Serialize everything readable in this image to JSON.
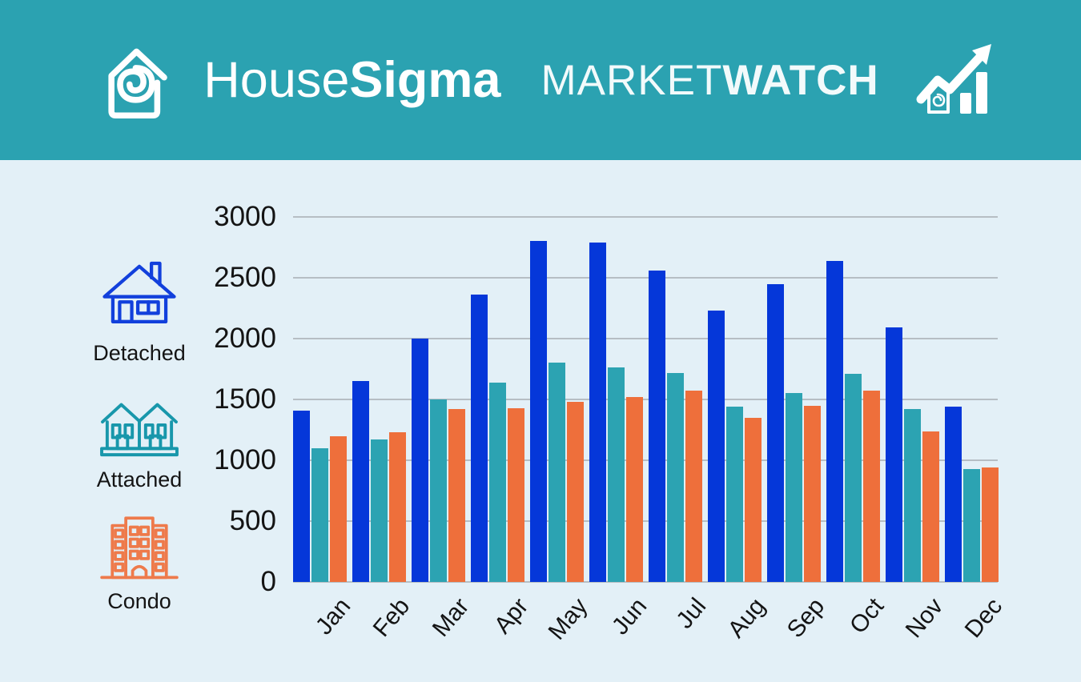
{
  "header": {
    "bg_color": "#2ba2b1",
    "brand": {
      "name_regular": "House",
      "name_bold": "Sigma"
    },
    "title": {
      "regular": "MARKET",
      "bold": "WATCH"
    },
    "logo_icon": "housesigma-house-spiral-icon",
    "title_icon": "house-trend-arrow-chart-icon"
  },
  "legend": {
    "items": [
      {
        "label": "Detached",
        "icon": "detached-house-icon",
        "color": "#1240dc"
      },
      {
        "label": "Attached",
        "icon": "attached-houses-icon",
        "color": "#1897ab"
      },
      {
        "label": "Condo",
        "icon": "condo-building-icon",
        "color": "#ee7a4b"
      }
    ]
  },
  "chart_data": {
    "type": "bar",
    "categories": [
      "Jan",
      "Feb",
      "Mar",
      "Apr",
      "May",
      "Jun",
      "Jul",
      "Aug",
      "Sep",
      "Oct",
      "Nov",
      "Dec"
    ],
    "series": [
      {
        "name": "Detached",
        "color": "#0537d9",
        "values": [
          1410,
          1650,
          2000,
          2360,
          2800,
          2790,
          2560,
          2230,
          2450,
          2640,
          2090,
          1440
        ]
      },
      {
        "name": "Attached",
        "color": "#2ca3b2",
        "values": [
          1100,
          1170,
          1500,
          1640,
          1800,
          1760,
          1720,
          1440,
          1550,
          1710,
          1420,
          930
        ]
      },
      {
        "name": "Condo",
        "color": "#ee6f3b",
        "values": [
          1200,
          1230,
          1420,
          1430,
          1480,
          1520,
          1570,
          1350,
          1450,
          1570,
          1240,
          940
        ]
      }
    ],
    "title": "",
    "xlabel": "",
    "ylabel": "",
    "ylim": [
      0,
      3000
    ],
    "ytick_step": 500,
    "yticks": [
      "3000",
      "2500",
      "2000",
      "1500",
      "1000",
      "500",
      "0"
    ],
    "grid": "horizontal",
    "gridline_color": "#b6bec4",
    "legend_position": "left",
    "background": "#e3f0f7"
  }
}
